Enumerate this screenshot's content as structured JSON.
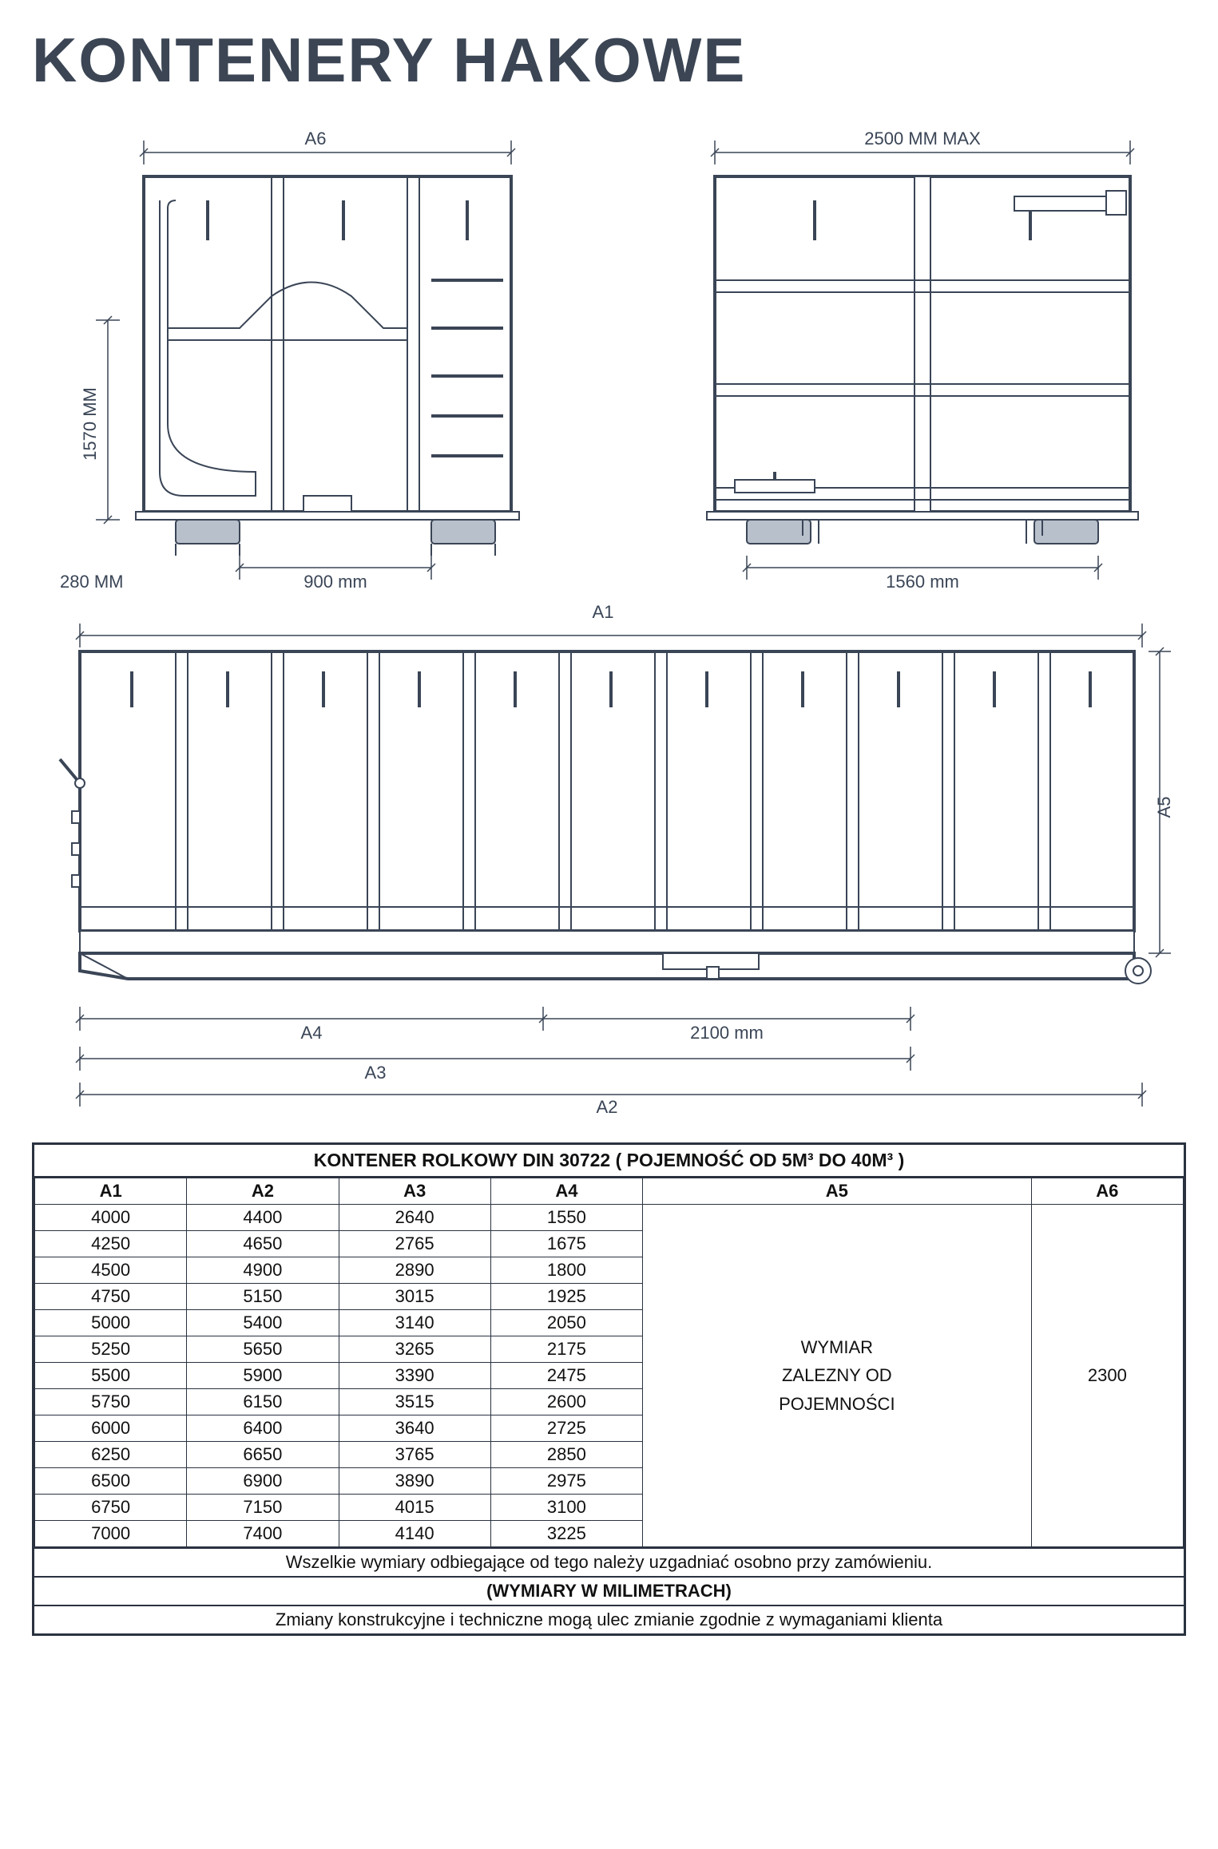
{
  "title": "KONTENERY HAKOWE",
  "colors": {
    "stroke": "#3a4556",
    "title_color": "#3b4554",
    "table_border": "#2a3240",
    "background": "#ffffff"
  },
  "diagram_front": {
    "top_label": "A6",
    "left_label": "1570 MM",
    "bottom_label": "900 mm",
    "far_left_label": "280 MM"
  },
  "diagram_back": {
    "top_label": "2500 MM MAX",
    "bottom_label": "1560 mm"
  },
  "diagram_side": {
    "top_center_label": "A1",
    "right_label": "A5",
    "bottom_labels": {
      "a4": "A4",
      "mid": "2100 mm",
      "a3": "A3",
      "a2": "A2"
    }
  },
  "table": {
    "title": "KONTENER ROLKOWY DIN 30722 ( POJEMNOŚĆ OD  5M³ DO 40M³ )",
    "columns": [
      "A1",
      "A2",
      "A3",
      "A4",
      "A5",
      "A6"
    ],
    "a5_text": "WYMIAR\nZALEZNY OD\nPOJEMNOŚCI",
    "a6_text": "2300",
    "rows": [
      [
        "4000",
        "4400",
        "2640",
        "1550"
      ],
      [
        "4250",
        "4650",
        "2765",
        "1675"
      ],
      [
        "4500",
        "4900",
        "2890",
        "1800"
      ],
      [
        "4750",
        "5150",
        "3015",
        "1925"
      ],
      [
        "5000",
        "5400",
        "3140",
        "2050"
      ],
      [
        "5250",
        "5650",
        "3265",
        "2175"
      ],
      [
        "5500",
        "5900",
        "3390",
        "2475"
      ],
      [
        "5750",
        "6150",
        "3515",
        "2600"
      ],
      [
        "6000",
        "6400",
        "3640",
        "2725"
      ],
      [
        "6250",
        "6650",
        "3765",
        "2850"
      ],
      [
        "6500",
        "6900",
        "3890",
        "2975"
      ],
      [
        "6750",
        "7150",
        "4015",
        "3100"
      ],
      [
        "7000",
        "7400",
        "4140",
        "3225"
      ]
    ],
    "note1": "Wszelkie wymiary odbiegające od tego należy uzgadniać osobno przy zamówieniu.",
    "note_bold": "(WYMIARY W MILIMETRACH)",
    "note2": "Zmiany konstrukcyjne i techniczne mogą ulec zmianie zgodnie z wymaganiami klienta"
  }
}
